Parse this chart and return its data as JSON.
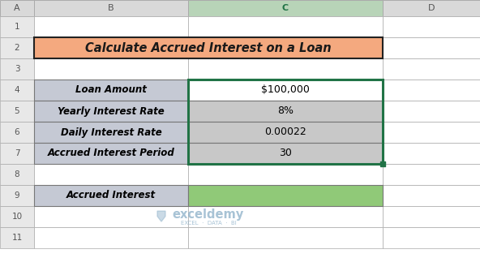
{
  "title": "Calculate Accrued Interest on a Loan",
  "title_bg": "#F4A97F",
  "title_border": "#222222",
  "col_headers": [
    "A",
    "B",
    "C",
    "D"
  ],
  "table_rows": [
    {
      "label": "Loan Amount",
      "value": "$100,000",
      "label_bg": "#C5C9D4",
      "value_bg": "#FFFFFF"
    },
    {
      "label": "Yearly Interest Rate",
      "value": "8%",
      "label_bg": "#C5C9D4",
      "value_bg": "#C8C8C8"
    },
    {
      "label": "Daily Interest Rate",
      "value": "0.00022",
      "label_bg": "#C5C9D4",
      "value_bg": "#C8C8C8"
    },
    {
      "label": "Accrued Interest Period",
      "value": "30",
      "label_bg": "#C5C9D4",
      "value_bg": "#C8C8C8"
    }
  ],
  "bottom_row": {
    "label": "Accrued Interest",
    "label_bg": "#C5C9D4",
    "value_bg": "#90C978"
  },
  "col_header_bg": "#D9D9D9",
  "col_C_header_bg": "#B8D4B8",
  "grid_color": "#AAAAAA",
  "selected_border": "#217346",
  "watermark_line1": "exceldemy",
  "watermark_line2": "EXCEL  ·  DATA  ·  BI",
  "watermark_color": "#8BAFC8"
}
